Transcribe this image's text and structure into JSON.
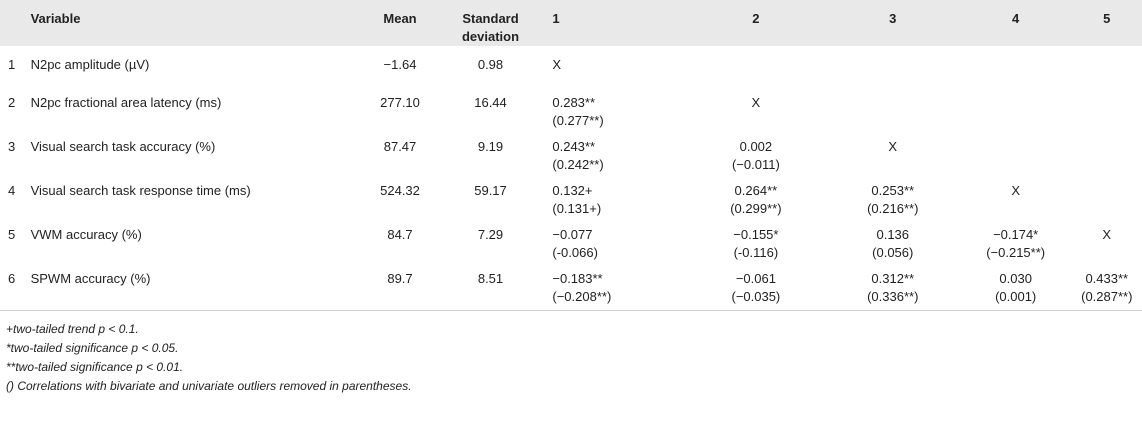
{
  "table": {
    "headers": {
      "num": "",
      "variable": "Variable",
      "mean": "Mean",
      "sd": "Standard deviation",
      "c1": "1",
      "c2": "2",
      "c3": "3",
      "c4": "4",
      "c5": "5"
    },
    "rows": [
      {
        "num": "1",
        "variable": "N2pc amplitude (µV)",
        "mean": "−1.64",
        "sd": "0.98",
        "c1": [
          "X",
          ""
        ],
        "c2": [
          "",
          ""
        ],
        "c3": [
          "",
          ""
        ],
        "c4": [
          "",
          ""
        ],
        "c5": [
          "",
          ""
        ]
      },
      {
        "num": "2",
        "variable": "N2pc fractional area latency (ms)",
        "mean": "277.10",
        "sd": "16.44",
        "c1": [
          "0.283**",
          "(0.277**)"
        ],
        "c2": [
          "X",
          ""
        ],
        "c3": [
          "",
          ""
        ],
        "c4": [
          "",
          ""
        ],
        "c5": [
          "",
          ""
        ]
      },
      {
        "num": "3",
        "variable": "Visual search task accuracy (%)",
        "mean": "87.47",
        "sd": "9.19",
        "c1": [
          "0.243**",
          "(0.242**)"
        ],
        "c2": [
          "0.002",
          "(−0.011)"
        ],
        "c3": [
          "X",
          ""
        ],
        "c4": [
          "",
          ""
        ],
        "c5": [
          "",
          ""
        ]
      },
      {
        "num": "4",
        "variable": "Visual search task response time (ms)",
        "mean": "524.32",
        "sd": "59.17",
        "c1": [
          "0.132+",
          "(0.131+)"
        ],
        "c2": [
          "0.264**",
          "(0.299**)"
        ],
        "c3": [
          "0.253**",
          "(0.216**)"
        ],
        "c4": [
          "X",
          ""
        ],
        "c5": [
          "",
          ""
        ]
      },
      {
        "num": "5",
        "variable": "VWM accuracy (%)",
        "mean": "84.7",
        "sd": "7.29",
        "c1": [
          "−0.077",
          "(-0.066)"
        ],
        "c2": [
          "−0.155*",
          "(-0.116)"
        ],
        "c3": [
          "0.136",
          "(0.056)"
        ],
        "c4": [
          "−0.174*",
          "(−0.215**)"
        ],
        "c5": [
          "X",
          ""
        ]
      },
      {
        "num": "6",
        "variable": "SPWM accuracy (%)",
        "mean": "89.7",
        "sd": "8.51",
        "c1": [
          "−0.183**",
          "(−0.208**)"
        ],
        "c2": [
          "−0.061",
          "(−0.035)"
        ],
        "c3": [
          "0.312**",
          "(0.336**)"
        ],
        "c4": [
          "0.030",
          "(0.001)"
        ],
        "c5": [
          "0.433**",
          "(0.287**)"
        ]
      }
    ]
  },
  "notes": [
    "+two-tailed trend p < 0.1.",
    "*two-tailed significance p < 0.05.",
    "**two-tailed significance p < 0.01.",
    "() Correlations with bivariate and univariate outliers removed in parentheses."
  ]
}
